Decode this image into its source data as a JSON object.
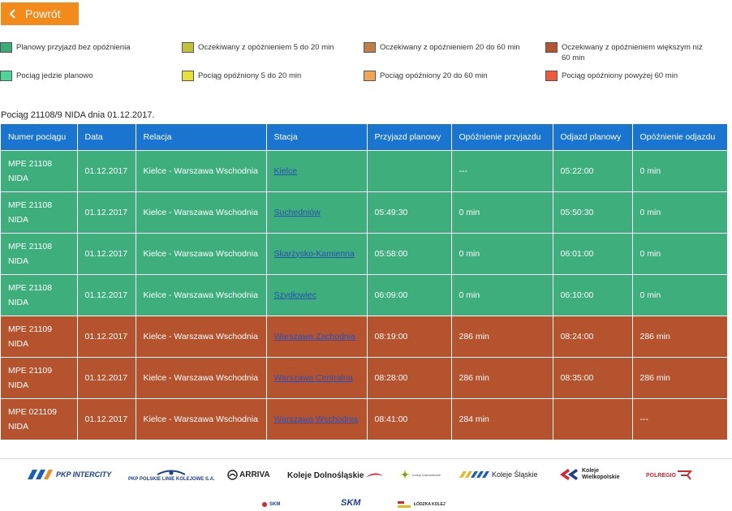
{
  "back_button": {
    "label": "Powrót"
  },
  "legend": [
    {
      "label": "Planowy przyjazd bez opóźnienia",
      "color": "#3daa7a"
    },
    {
      "label": "Oczekiwany z opóźnieniem 5 do 20 min",
      "color": "#c3c03a"
    },
    {
      "label": "Oczekiwany z opóźnieniem 20 do 60 min",
      "color": "#bf7e45"
    },
    {
      "label": "Oczekiwany z opóźnieniem większym niż 60 min",
      "color": "#b5532f"
    },
    {
      "label": "Pociąg jedzie planowo",
      "color": "#4fd49a"
    },
    {
      "label": "Pociąg opóźniony 5 do 20 min",
      "color": "#e6e038"
    },
    {
      "label": "Pociąg opóźniony 20 do 60 min",
      "color": "#f0a552"
    },
    {
      "label": "Pociąg opóźniony powyżej 60 min",
      "color": "#ee5a3a"
    }
  ],
  "train_title": "Pociąg 21108/9 NIDA dnia 01.12.2017.",
  "table": {
    "headers": [
      "Numer pociągu",
      "Data",
      "Relacja",
      "Stacja",
      "Przyjazd planowy",
      "Opóźnienie przyjazdu",
      "Odjazd planowy",
      "Opóźnienie odjazdu"
    ],
    "rows": [
      {
        "train_number": "MPE 21108",
        "train_name": "NIDA",
        "date": "01.12.2017",
        "route": "Kielce - Warszawa Wschodnia",
        "station": "Kielce",
        "arrival": "",
        "arrival_delay": "---",
        "departure": "05:22:00",
        "departure_delay": "0 min"
      },
      {
        "train_number": "MPE 21108",
        "train_name": "NIDA",
        "date": "01.12.2017",
        "route": "Kielce - Warszawa Wschodnia",
        "station": "Suchedniów",
        "arrival": "05:49:30",
        "arrival_delay": "0 min",
        "departure": "05:50:30",
        "departure_delay": "0 min"
      },
      {
        "train_number": "MPE 21108",
        "train_name": "NIDA",
        "date": "01.12.2017",
        "route": "Kielce - Warszawa Wschodnia",
        "station": "Skarżysko-Kamienna",
        "arrival": "05:58:00",
        "arrival_delay": "0 min",
        "departure": "06:01:00",
        "departure_delay": "0 min"
      },
      {
        "train_number": "MPE 21108",
        "train_name": "NIDA",
        "date": "01.12.2017",
        "route": "Kielce - Warszawa Wschodnia",
        "station": "Szydłowiec",
        "arrival": "06:09:00",
        "arrival_delay": "0 min",
        "departure": "06:10:00",
        "departure_delay": "0 min"
      },
      {
        "train_number": "MPE 21109",
        "train_name": "NIDA",
        "date": "01.12.2017",
        "route": "Kielce - Warszawa Wschodnia",
        "station": "Warszawa Zachodnia",
        "arrival": "08:19:00",
        "arrival_delay": "286 min",
        "departure": "08:24:00",
        "departure_delay": "286 min"
      },
      {
        "train_number": "MPE 21109",
        "train_name": "NIDA",
        "date": "01.12.2017",
        "route": "Kielce - Warszawa Wschodnia",
        "station": "Warszawa Centralna",
        "arrival": "08:28:00",
        "arrival_delay": "286 min",
        "departure": "08:35:00",
        "departure_delay": "286 min"
      },
      {
        "train_number": "MPE 021109",
        "train_name": "NIDA",
        "date": "01.12.2017",
        "route": "Kielce - Warszawa Wschodnia",
        "station": "Warszawa Wschodnia",
        "arrival": "08:41:00",
        "arrival_delay": "284 min",
        "departure": "",
        "departure_delay": "---"
      }
    ]
  },
  "footer_logos": {
    "intercity": "PKP INTERCITY",
    "plk": "PKP POLSKIE LINIE KOLEJOWE S.A.",
    "arriva": "ARRIVA",
    "dolnoslaskie": "Koleje Dolnośląskie",
    "mazowieckie": "Koleje Mazowieckie",
    "slaskie": "Koleje Śląskie",
    "wielkopolskie_1": "Koleje",
    "wielkopolskie_2": "Wielkopolskie",
    "polregio": "POLREGIO",
    "skm_small": "SKM",
    "skm": "SKM",
    "lodzka": "ŁÓDZKA KOLEJ"
  },
  "colors": {
    "back_button": "#f28a1c",
    "header": "#1a75d0",
    "row_ontime": "#3dae7c",
    "row_late": "#b5532f",
    "link": "#2c4fb6"
  }
}
